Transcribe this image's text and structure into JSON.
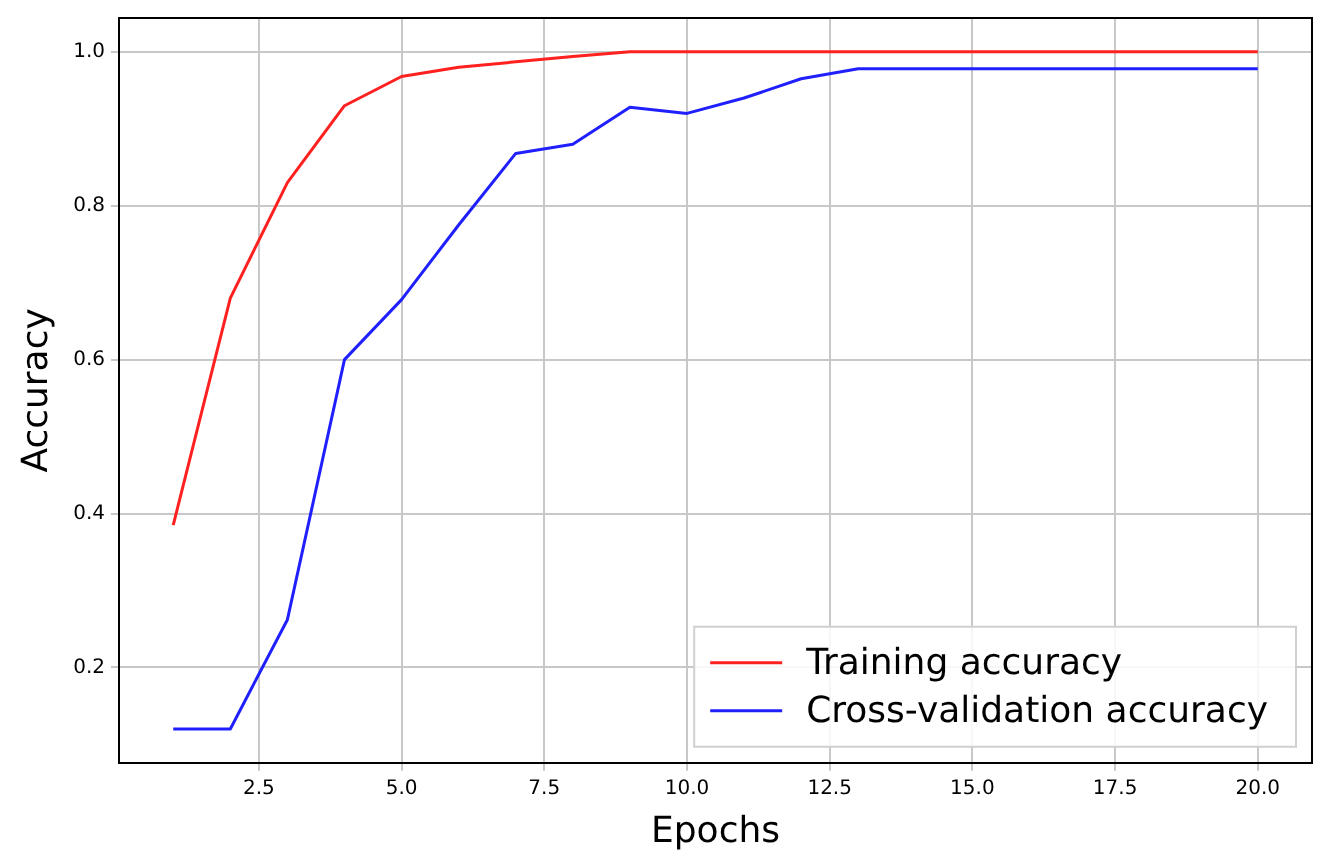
{
  "chart_data": {
    "type": "line",
    "xlabel": "Epochs",
    "ylabel": "Accuracy",
    "x": [
      1,
      2,
      3,
      4,
      5,
      6,
      7,
      8,
      9,
      10,
      11,
      12,
      13,
      14,
      15,
      16,
      17,
      18,
      19,
      20
    ],
    "series": [
      {
        "name": "Training accuracy",
        "color": "#ff2020",
        "values": [
          0.385,
          0.68,
          0.83,
          0.93,
          0.968,
          0.98,
          0.987,
          0.994,
          1.0,
          1.0,
          1.0,
          1.0,
          1.0,
          1.0,
          1.0,
          1.0,
          1.0,
          1.0,
          1.0,
          1.0
        ]
      },
      {
        "name": "Cross-validation accuracy",
        "color": "#2020ff",
        "values": [
          0.12,
          0.12,
          0.262,
          0.6,
          0.678,
          0.775,
          0.868,
          0.88,
          0.928,
          0.92,
          0.94,
          0.965,
          0.978,
          0.978,
          0.978,
          0.978,
          0.978,
          0.978,
          0.978,
          0.978
        ]
      }
    ],
    "xlim": [
      0.05,
      20.95
    ],
    "ylim": [
      0.076,
      1.044
    ],
    "xticks": [
      2.5,
      {
        "value": 5,
        "label": "5.0"
      },
      7.5,
      {
        "value": 10,
        "label": "10.0"
      },
      12.5,
      {
        "value": 15,
        "label": "15.0"
      },
      17.5,
      {
        "value": 20,
        "label": "20.0"
      }
    ],
    "yticks": [
      0.2,
      0.4,
      0.6,
      0.8,
      {
        "value": 1,
        "label": "1.0"
      }
    ],
    "grid": true,
    "legend": "bottom right",
    "marker": "none",
    "line_style": "solid"
  }
}
